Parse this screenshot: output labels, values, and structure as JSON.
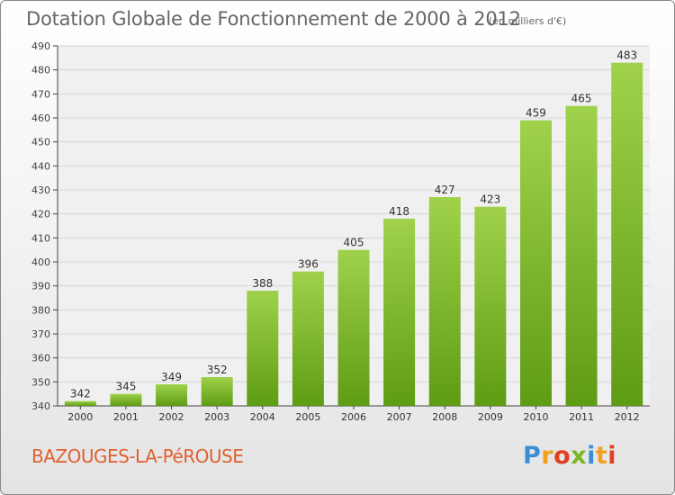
{
  "chart_data": {
    "type": "bar",
    "title": "Dotation Globale de Fonctionnement de 2000 à 2012",
    "subtitle": "(en milliers d'€)",
    "categories": [
      "2000",
      "2001",
      "2002",
      "2003",
      "2004",
      "2005",
      "2006",
      "2007",
      "2008",
      "2009",
      "2010",
      "2011",
      "2012"
    ],
    "values": [
      342,
      345,
      349,
      352,
      388,
      396,
      405,
      418,
      427,
      423,
      459,
      465,
      483
    ],
    "ylim": [
      340,
      490
    ],
    "yticks": [
      340,
      350,
      360,
      370,
      380,
      390,
      400,
      410,
      420,
      430,
      440,
      450,
      460,
      470,
      480,
      490
    ],
    "grid": true,
    "bar_color_top": "#9fd24a",
    "bar_color_bottom": "#5e9c14"
  },
  "footer": {
    "commune": "BAZOUGES-LA-PéROUSE",
    "brand_letters": [
      "P",
      "r",
      "o",
      "x",
      "i",
      "t",
      "i"
    ],
    "brand_colors": [
      "#3a8ed8",
      "#f0a020",
      "#e04020",
      "#7ab828",
      "#3a8ed8",
      "#f0a020",
      "#e04020"
    ]
  }
}
